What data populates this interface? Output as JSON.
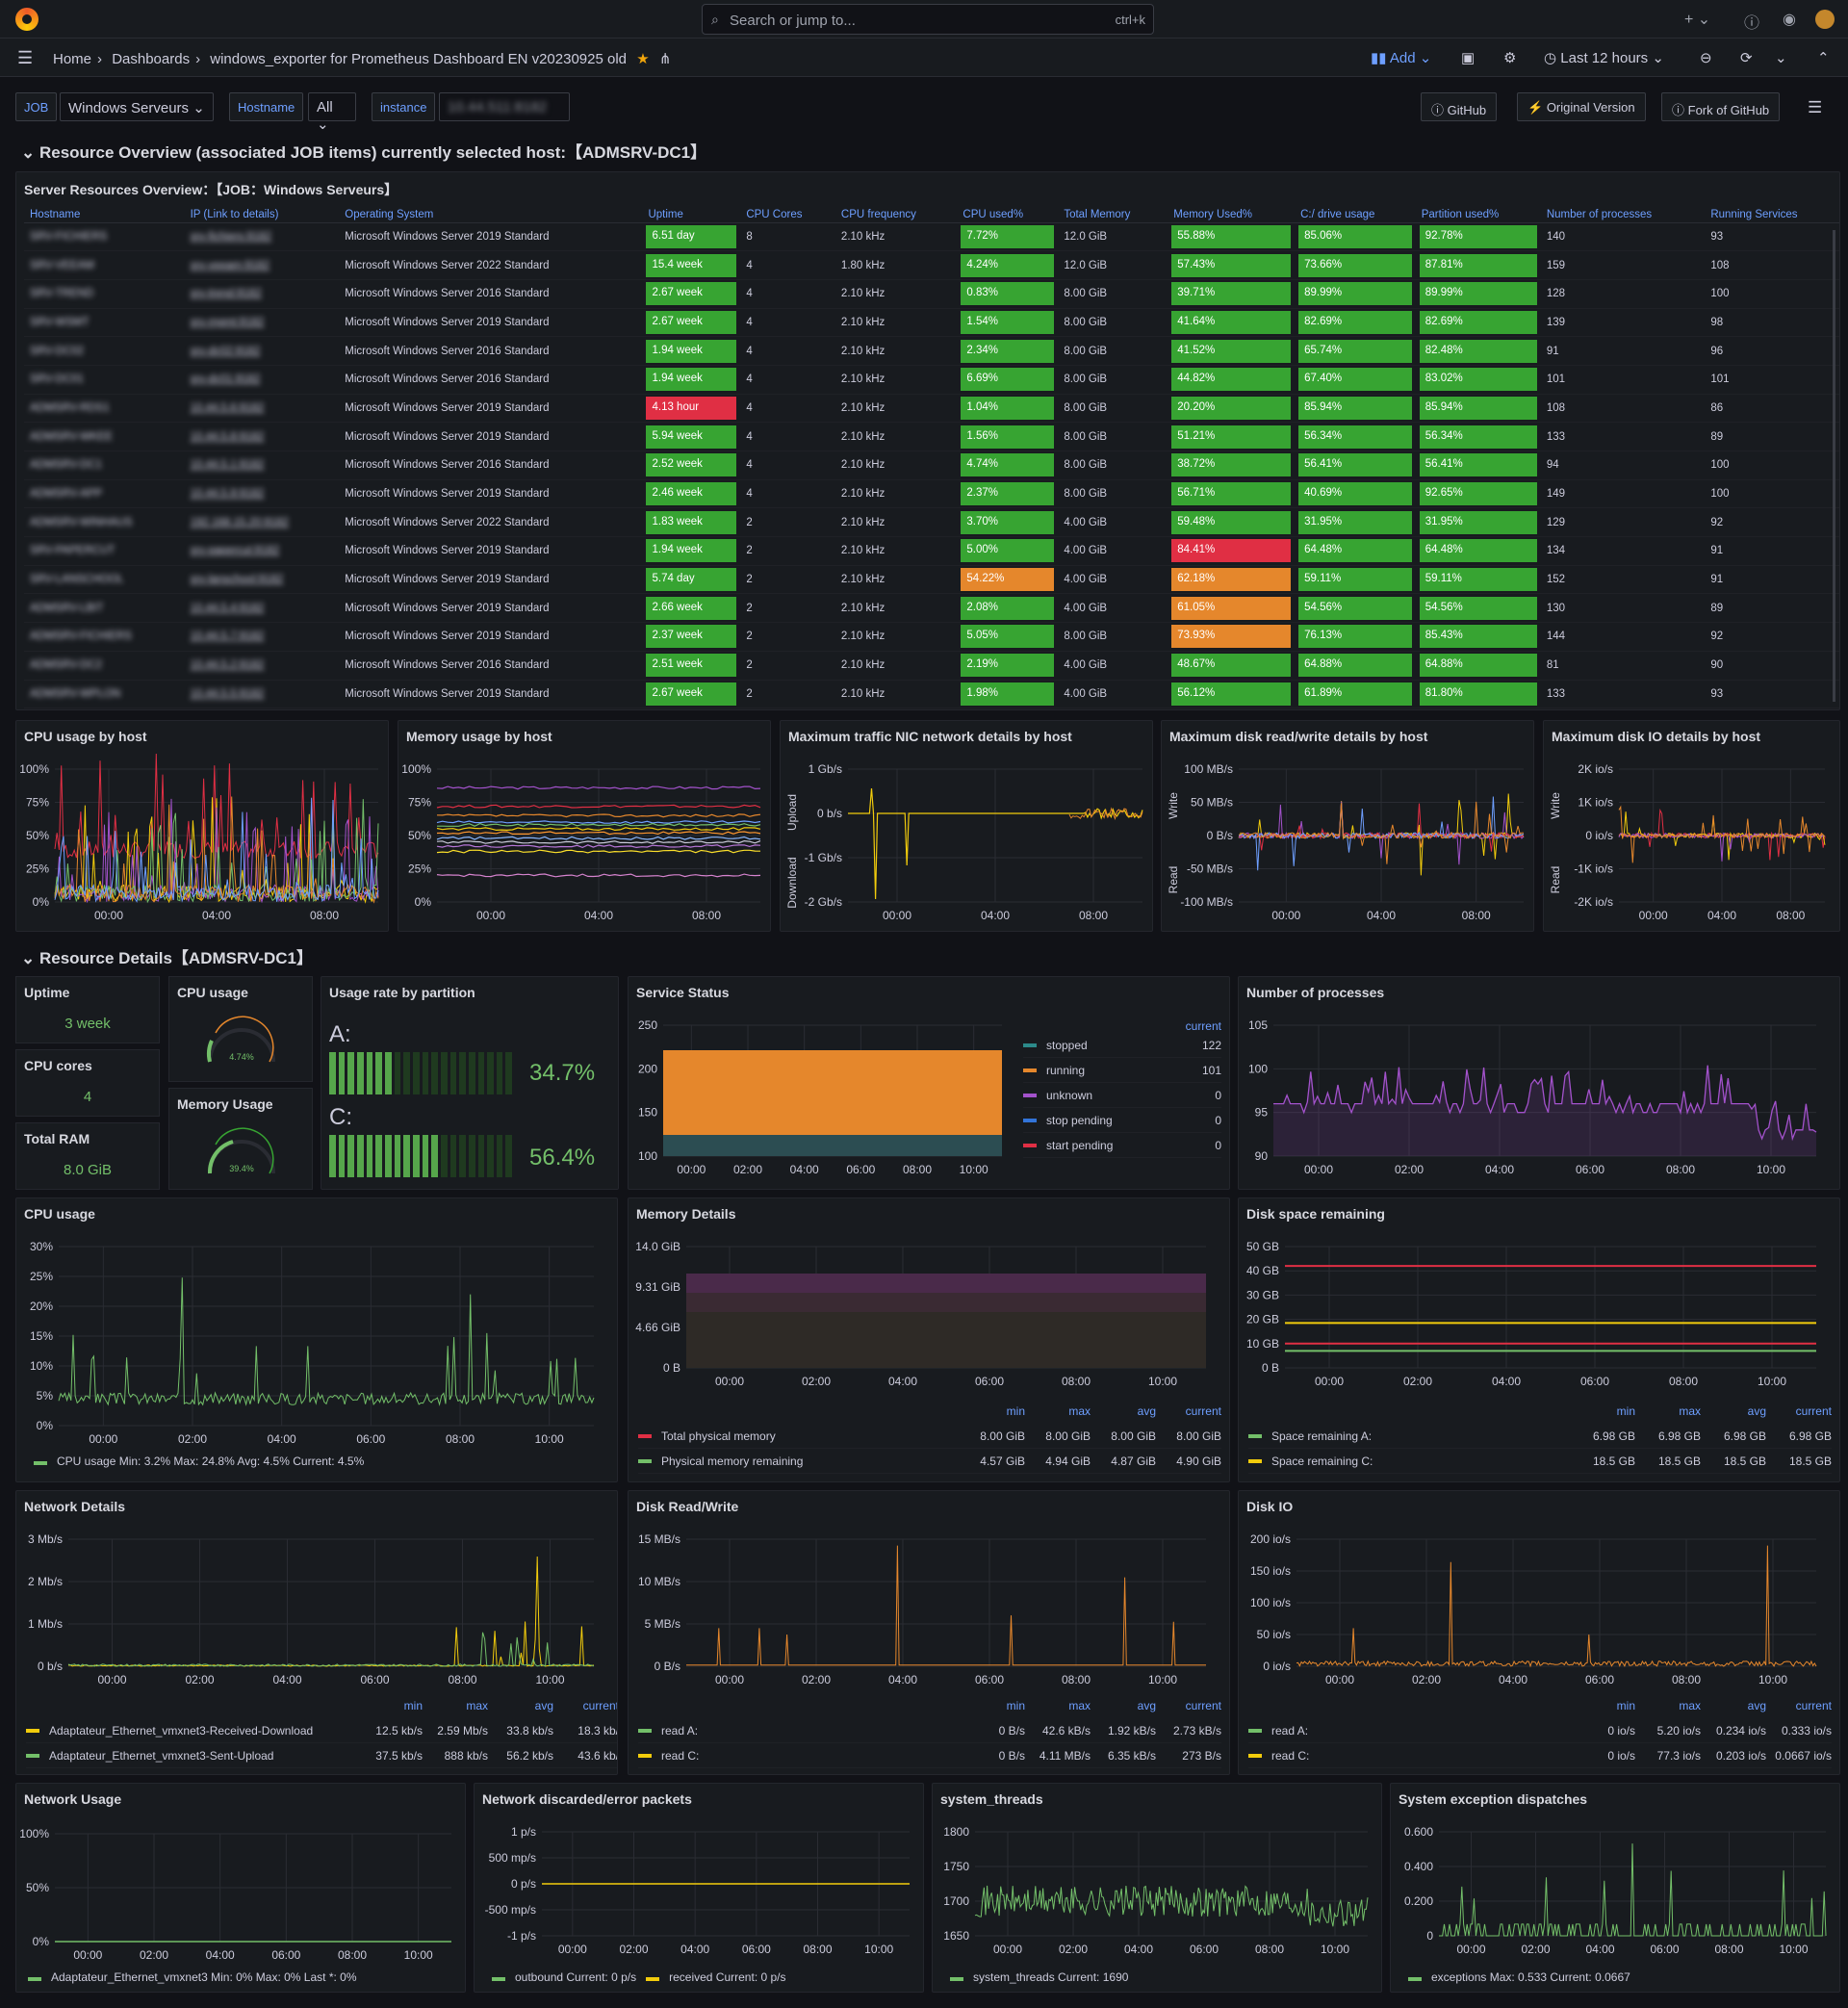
{
  "app": {
    "search_placeholder": "Search or jump to...",
    "search_shortcut": "ctrl+k",
    "add": "Add",
    "time_range": "Last 12 hours"
  },
  "breadcrumb": {
    "home": "Home",
    "dashboards": "Dashboards",
    "title": "windows_exporter for Prometheus Dashboard EN v20230925 old"
  },
  "vars": {
    "job_label": "JOB",
    "job_value": "Windows Serveurs",
    "hostname_label": "Hostname",
    "hostname_value": "All",
    "instance_label": "instance",
    "instance_value": "10.44.511:8182"
  },
  "links": {
    "github": "GitHub",
    "original": "Original Version",
    "fork": "Fork of GitHub"
  },
  "rows": {
    "overview": "Resource Overview (associated JOB items) currently selected host:【ADMSRV-DC1】",
    "details": "Resource Details【ADMSRV-DC1】"
  },
  "server_table": {
    "title": "Server Resources Overview：【JOB：Windows Serveurs】",
    "headers": [
      "Hostname",
      "IP (Link to details)",
      "Operating System",
      "Uptime",
      "CPU Cores",
      "CPU frequency",
      "CPU used%",
      "Total Memory",
      "Memory Used%",
      "C:/ drive usage",
      "Partition used%",
      "Number of processes",
      "Running Services"
    ],
    "rows": [
      [
        "SRV-FICHIERS",
        "srv-fichiers:9182",
        "Microsoft Windows Server 2019 Standard",
        "6.51 day",
        "8",
        "2.10 kHz",
        "7.72%",
        "12.0 GiB",
        "55.88%",
        "85.06%",
        "92.78%",
        "140",
        "93"
      ],
      [
        "SRV-VEEAM",
        "srv-veeam:9182",
        "Microsoft Windows Server 2022 Standard",
        "15.4 week",
        "4",
        "1.80 kHz",
        "4.24%",
        "12.0 GiB",
        "57.43%",
        "73.66%",
        "87.81%",
        "159",
        "108"
      ],
      [
        "SRV-TREND",
        "srv-trend:9182",
        "Microsoft Windows Server 2016 Standard",
        "2.67 week",
        "4",
        "2.10 kHz",
        "0.83%",
        "8.00 GiB",
        "39.71%",
        "89.99%",
        "89.99%",
        "128",
        "100"
      ],
      [
        "SRV-WSMT",
        "srv-mgmt:9182",
        "Microsoft Windows Server 2019 Standard",
        "2.67 week",
        "4",
        "2.10 kHz",
        "1.54%",
        "8.00 GiB",
        "41.64%",
        "82.69%",
        "82.69%",
        "139",
        "98"
      ],
      [
        "SRV-DC02",
        "srv-dc02:9182",
        "Microsoft Windows Server 2016 Standard",
        "1.94 week",
        "4",
        "2.10 kHz",
        "2.34%",
        "8.00 GiB",
        "41.52%",
        "65.74%",
        "82.48%",
        "91",
        "96"
      ],
      [
        "SRV-DC01",
        "srv-dc01:9182",
        "Microsoft Windows Server 2016 Standard",
        "1.94 week",
        "4",
        "2.10 kHz",
        "6.69%",
        "8.00 GiB",
        "44.82%",
        "67.40%",
        "83.02%",
        "101",
        "101"
      ],
      [
        "ADMSRV-RDS1",
        "10.44.5.6:9182",
        "Microsoft Windows Server 2019 Standard",
        "4.13 hour",
        "4",
        "2.10 kHz",
        "1.04%",
        "8.00 GiB",
        "20.20%",
        "85.94%",
        "85.94%",
        "108",
        "86"
      ],
      [
        "ADMSRV-WKEE",
        "10.44.5.8:9182",
        "Microsoft Windows Server 2019 Standard",
        "5.94 week",
        "4",
        "2.10 kHz",
        "1.56%",
        "8.00 GiB",
        "51.21%",
        "56.34%",
        "56.34%",
        "133",
        "89"
      ],
      [
        "ADMSRV-DC1",
        "10.44.5.1:9182",
        "Microsoft Windows Server 2016 Standard",
        "2.52 week",
        "4",
        "2.10 kHz",
        "4.74%",
        "8.00 GiB",
        "38.72%",
        "56.41%",
        "56.41%",
        "94",
        "100"
      ],
      [
        "ADMSRV-APP",
        "10.44.5.9:9182",
        "Microsoft Windows Server 2019 Standard",
        "2.46 week",
        "4",
        "2.10 kHz",
        "2.37%",
        "8.00 GiB",
        "56.71%",
        "40.69%",
        "92.65%",
        "149",
        "100"
      ],
      [
        "ADMSRV-WINHAUS",
        "192.168.15.20:9182",
        "Microsoft Windows Server 2022 Standard",
        "1.83 week",
        "2",
        "2.10 kHz",
        "3.70%",
        "4.00 GiB",
        "59.48%",
        "31.95%",
        "31.95%",
        "129",
        "92"
      ],
      [
        "SRV-PAPERCUT",
        "srv-papercut:9182",
        "Microsoft Windows Server 2019 Standard",
        "1.94 week",
        "2",
        "2.10 kHz",
        "5.00%",
        "4.00 GiB",
        "84.41%",
        "64.48%",
        "64.48%",
        "134",
        "91"
      ],
      [
        "SRV-LANSCHOOL",
        "srv-lanschool:9182",
        "Microsoft Windows Server 2019 Standard",
        "5.74 day",
        "2",
        "2.10 kHz",
        "54.22%",
        "4.00 GiB",
        "62.18%",
        "59.11%",
        "59.11%",
        "152",
        "91"
      ],
      [
        "ADMSRV-LBIT",
        "10.44.5.4:9182",
        "Microsoft Windows Server 2019 Standard",
        "2.66 week",
        "2",
        "2.10 kHz",
        "2.08%",
        "4.00 GiB",
        "61.05%",
        "54.56%",
        "54.56%",
        "130",
        "89"
      ],
      [
        "ADMSRV-FICHIERS",
        "10.44.5.7:9182",
        "Microsoft Windows Server 2019 Standard",
        "2.37 week",
        "2",
        "2.10 kHz",
        "5.05%",
        "8.00 GiB",
        "73.93%",
        "76.13%",
        "85.43%",
        "144",
        "92"
      ],
      [
        "ADMSRV-DC2",
        "10.44.5.2:9182",
        "Microsoft Windows Server 2016 Standard",
        "2.51 week",
        "2",
        "2.10 kHz",
        "2.19%",
        "4.00 GiB",
        "48.67%",
        "64.88%",
        "64.88%",
        "81",
        "90"
      ],
      [
        "ADMSRV-WPLON",
        "10.44.5.5:9182",
        "Microsoft Windows Server 2019 Standard",
        "2.67 week",
        "2",
        "2.10 kHz",
        "1.98%",
        "4.00 GiB",
        "56.12%",
        "61.89%",
        "81.80%",
        "133",
        "93"
      ]
    ],
    "cell_colors": {
      "3": [
        "g",
        "g",
        "g",
        "g",
        "g",
        "g",
        "r",
        "g",
        "g",
        "g",
        "g",
        "g",
        "g",
        "g",
        "g",
        "g",
        "g"
      ],
      "6": [
        "g",
        "g",
        "g",
        "g",
        "g",
        "g",
        "g",
        "g",
        "g",
        "g",
        "g",
        "g",
        "o",
        "g",
        "g",
        "g",
        "g"
      ],
      "8": [
        "g",
        "g",
        "g",
        "g",
        "g",
        "g",
        "g",
        "g",
        "g",
        "g",
        "g",
        "r",
        "o",
        "o",
        "o",
        "g",
        "g"
      ],
      "9": [
        "g",
        "g",
        "g",
        "g",
        "g",
        "g",
        "g",
        "g",
        "g",
        "g",
        "g",
        "g",
        "g",
        "g",
        "g",
        "g",
        "g"
      ],
      "10": [
        "g",
        "g",
        "g",
        "g",
        "g",
        "g",
        "g",
        "g",
        "g",
        "g",
        "g",
        "g",
        "g",
        "g",
        "g",
        "g",
        "g"
      ]
    }
  },
  "small_panels": {
    "cpu_host": {
      "title": "CPU usage by host",
      "yticks": [
        "100%",
        "75%",
        "50%",
        "25%",
        "0%"
      ],
      "xticks": [
        "00:00",
        "04:00",
        "08:00"
      ]
    },
    "mem_host": {
      "title": "Memory usage by host",
      "yticks": [
        "100%",
        "75%",
        "50%",
        "25%",
        "0%"
      ],
      "xticks": [
        "00:00",
        "04:00",
        "08:00"
      ]
    },
    "nic": {
      "title": "Maximum traffic NIC network details by host",
      "yticks": [
        "1 Gb/s",
        "0 b/s",
        "-1 Gb/s",
        "-2 Gb/s"
      ],
      "xticks": [
        "00:00",
        "04:00",
        "08:00"
      ],
      "ylabel_top": "Upload",
      "ylabel_bot": "Download"
    },
    "disk_rw": {
      "title": "Maximum disk read/write details by host",
      "yticks": [
        "100 MB/s",
        "50 MB/s",
        "0 B/s",
        "-50 MB/s",
        "-100 MB/s"
      ],
      "xticks": [
        "00:00",
        "04:00",
        "08:00"
      ],
      "ylabel_top": "Write",
      "ylabel_bot": "Read"
    },
    "disk_io": {
      "title": "Maximum disk IO details by host",
      "yticks": [
        "2K io/s",
        "1K io/s",
        "0 io/s",
        "-1K io/s",
        "-2K io/s"
      ],
      "xticks": [
        "00:00",
        "04:00",
        "08:00"
      ],
      "ylabel_top": "Write",
      "ylabel_bot": "Read"
    }
  },
  "stats": {
    "uptime_t": "Uptime",
    "uptime_v": "3 week",
    "cores_t": "CPU cores",
    "cores_v": "4",
    "ram_t": "Total RAM",
    "ram_v": "8.0 GiB",
    "cpu_t": "CPU usage",
    "cpu_v": "4.74%",
    "mem_t": "Memory Usage",
    "mem_v": "39.4%"
  },
  "partition": {
    "title": "Usage rate by partition",
    "a_label": "A:",
    "a_value": "34.7%",
    "c_label": "C:",
    "c_value": "56.4%"
  },
  "service": {
    "title": "Service Status",
    "yticks": [
      "250",
      "200",
      "150",
      "100"
    ],
    "xticks": [
      "00:00",
      "02:00",
      "04:00",
      "06:00",
      "08:00",
      "10:00"
    ],
    "legend_head": "current",
    "legend": [
      [
        "stopped",
        "122"
      ],
      [
        "running",
        "101"
      ],
      [
        "unknown",
        "0"
      ],
      [
        "stop pending",
        "0"
      ],
      [
        "start pending",
        "0"
      ]
    ]
  },
  "processes": {
    "title": "Number of processes",
    "yticks": [
      "105",
      "100",
      "95",
      "90"
    ],
    "xticks": [
      "00:00",
      "02:00",
      "04:00",
      "06:00",
      "08:00",
      "10:00"
    ]
  },
  "cpu_usage": {
    "title": "CPU usage",
    "yticks": [
      "30%",
      "25%",
      "20%",
      "15%",
      "10%",
      "5%",
      "0%"
    ],
    "xticks": [
      "00:00",
      "02:00",
      "04:00",
      "06:00",
      "08:00",
      "10:00"
    ],
    "legend": "CPU usage  Min: 3.2%  Max: 24.8%  Avg: 4.5%  Current: 4.5%"
  },
  "mem_details": {
    "title": "Memory Details",
    "yticks": [
      "14.0 GiB",
      "9.31 GiB",
      "4.66 GiB",
      "0 B"
    ],
    "xticks": [
      "00:00",
      "02:00",
      "04:00",
      "06:00",
      "08:00",
      "10:00"
    ],
    "heads": [
      "min",
      "max",
      "avg",
      "current"
    ],
    "legend": [
      [
        "Total physical memory",
        "8.00 GiB",
        "8.00 GiB",
        "8.00 GiB",
        "8.00 GiB"
      ],
      [
        "Physical memory remaining",
        "4.57 GiB",
        "4.94 GiB",
        "4.87 GiB",
        "4.90 GiB"
      ]
    ]
  },
  "disk_space": {
    "title": "Disk space remaining",
    "yticks": [
      "50 GB",
      "40 GB",
      "30 GB",
      "20 GB",
      "10 GB",
      "0 B"
    ],
    "xticks": [
      "00:00",
      "02:00",
      "04:00",
      "06:00",
      "08:00",
      "10:00"
    ],
    "heads": [
      "min",
      "max",
      "avg",
      "current"
    ],
    "legend": [
      [
        "Space remaining A:",
        "6.98 GB",
        "6.98 GB",
        "6.98 GB",
        "6.98 GB"
      ],
      [
        "Space remaining C:",
        "18.5 GB",
        "18.5 GB",
        "18.5 GB",
        "18.5 GB"
      ]
    ]
  },
  "network": {
    "title": "Network Details",
    "yticks": [
      "3 Mb/s",
      "2 Mb/s",
      "1 Mb/s",
      "0 b/s"
    ],
    "xticks": [
      "00:00",
      "02:00",
      "04:00",
      "06:00",
      "08:00",
      "10:00"
    ],
    "heads": [
      "min",
      "max",
      "avg",
      "current"
    ],
    "legend": [
      [
        "Adaptateur_Ethernet_vmxnet3-Received-Download",
        "12.5 kb/s",
        "2.59 Mb/s",
        "33.8 kb/s",
        "18.3 kb/"
      ],
      [
        "Adaptateur_Ethernet_vmxnet3-Sent-Upload",
        "37.5 kb/s",
        "888 kb/s",
        "56.2 kb/s",
        "43.6 kb/"
      ]
    ]
  },
  "disk_rw_d": {
    "title": "Disk Read/Write",
    "yticks": [
      "15 MB/s",
      "10 MB/s",
      "5 MB/s",
      "0 B/s"
    ],
    "xticks": [
      "00:00",
      "02:00",
      "04:00",
      "06:00",
      "08:00",
      "10:00"
    ],
    "heads": [
      "min",
      "max",
      "avg",
      "current"
    ],
    "legend": [
      [
        "read A:",
        "0 B/s",
        "42.6 kB/s",
        "1.92 kB/s",
        "2.73 kB/s"
      ],
      [
        "read C:",
        "0 B/s",
        "4.11 MB/s",
        "6.35 kB/s",
        "273 B/s"
      ]
    ]
  },
  "disk_io_d": {
    "title": "Disk IO",
    "yticks": [
      "200 io/s",
      "150 io/s",
      "100 io/s",
      "50 io/s",
      "0 io/s"
    ],
    "xticks": [
      "00:00",
      "02:00",
      "04:00",
      "06:00",
      "08:00",
      "10:00"
    ],
    "heads": [
      "min",
      "max",
      "avg",
      "current"
    ],
    "legend": [
      [
        "read A:",
        "0 io/s",
        "5.20 io/s",
        "0.234 io/s",
        "0.333 io/s"
      ],
      [
        "read C:",
        "0 io/s",
        "77.3 io/s",
        "0.203 io/s",
        "0.0667 io/s"
      ]
    ]
  },
  "net_usage": {
    "title": "Network Usage",
    "yticks": [
      "100%",
      "50%",
      "0%"
    ],
    "xticks": [
      "00:00",
      "02:00",
      "04:00",
      "06:00",
      "08:00",
      "10:00"
    ],
    "legend": "Adaptateur_Ethernet_vmxnet3  Min: 0%  Max: 0%  Last *: 0%"
  },
  "net_err": {
    "title": "Network discarded/error packets",
    "yticks": [
      "1 p/s",
      "500 mp/s",
      "0 p/s",
      "-500 mp/s",
      "-1 p/s"
    ],
    "xticks": [
      "00:00",
      "02:00",
      "04:00",
      "06:00",
      "08:00",
      "10:00"
    ],
    "legend1": "outbound  Current: 0 p/s",
    "legend2": "received  Current: 0 p/s"
  },
  "threads": {
    "title": "system_threads",
    "yticks": [
      "1800",
      "1750",
      "1700",
      "1650"
    ],
    "xticks": [
      "00:00",
      "02:00",
      "04:00",
      "06:00",
      "08:00",
      "10:00"
    ],
    "legend": "system_threads  Current: 1690"
  },
  "exceptions": {
    "title": "System exception dispatches",
    "yticks": [
      "0.600",
      "0.400",
      "0.200",
      "0"
    ],
    "xticks": [
      "00:00",
      "02:00",
      "04:00",
      "06:00",
      "08:00",
      "10:00"
    ],
    "legend": "exceptions  Max: 0.533  Current: 0.0667"
  },
  "colors": {
    "green": "#37a432",
    "red": "#e02f44",
    "orange": "#e5872c",
    "blue": "#6e9fff",
    "purple": "#a352cc",
    "yellow": "#f2cc0c"
  }
}
